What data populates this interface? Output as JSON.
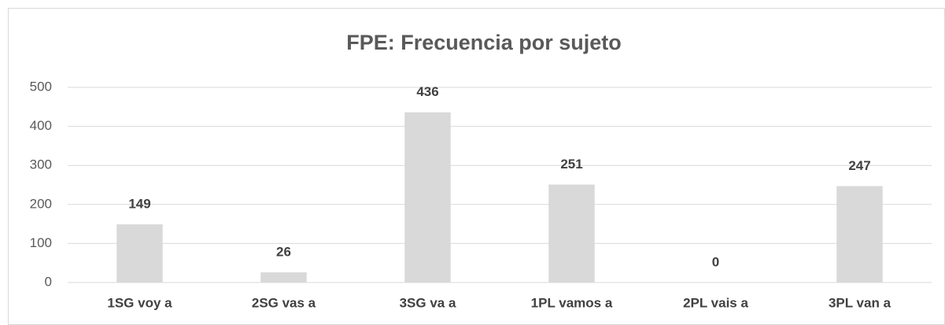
{
  "chart_data": {
    "type": "bar",
    "title": "FPE: Frecuencia por sujeto",
    "categories": [
      "1SG voy a",
      "2SG vas a",
      "3SG va a",
      "1PL vamos a",
      "2PL vais a",
      "3PL van a"
    ],
    "values": [
      149,
      26,
      436,
      251,
      0,
      247
    ],
    "color": "#d9d9d9",
    "ylim": [
      0,
      500
    ],
    "yticks": [
      0,
      100,
      200,
      300,
      400,
      500
    ],
    "grid": true,
    "data_labels": true
  }
}
